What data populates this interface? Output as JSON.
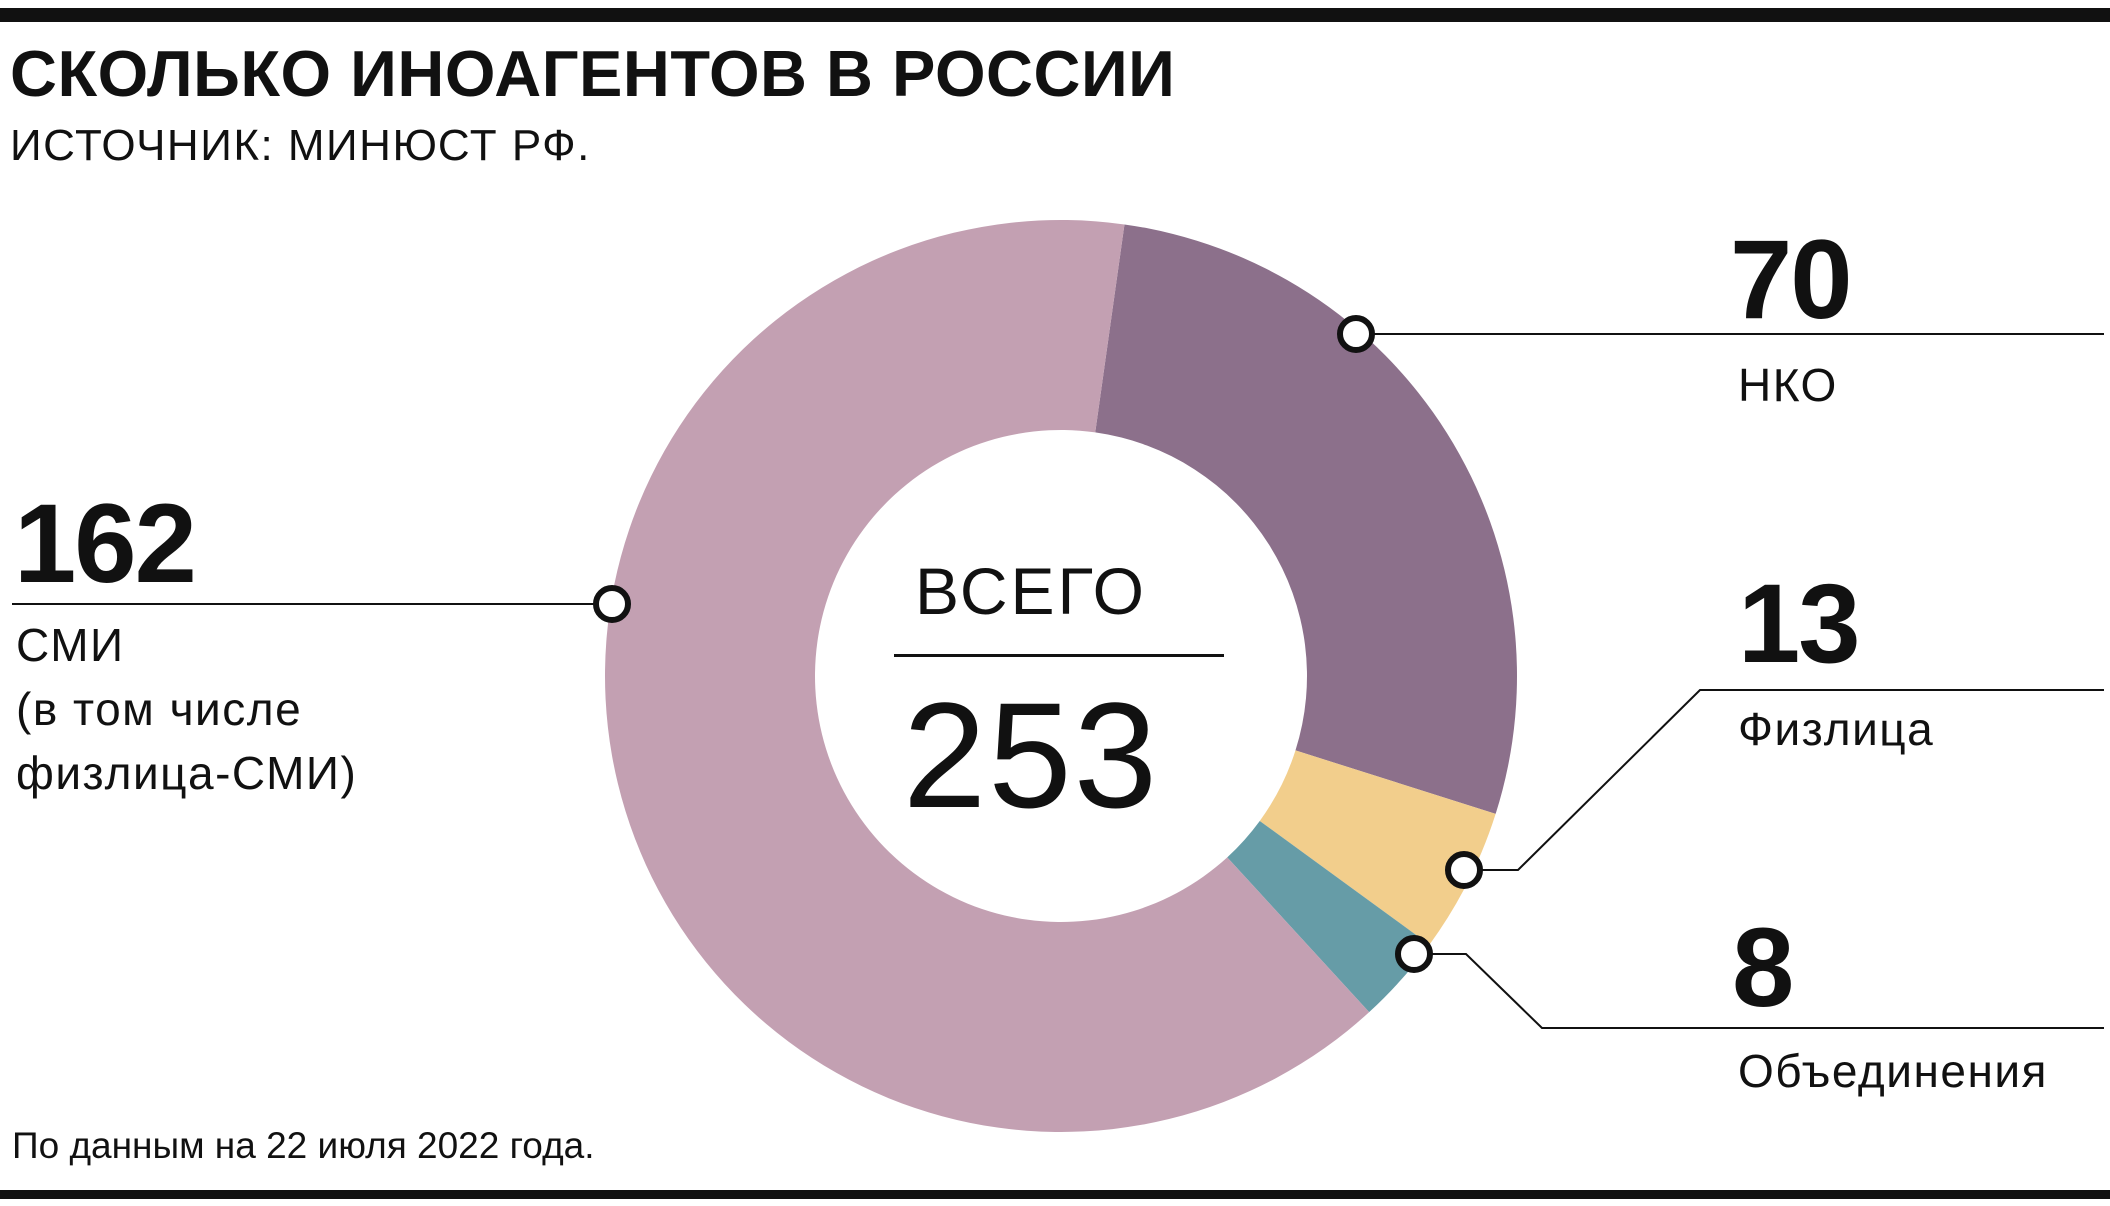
{
  "header": {
    "title": "СКОЛЬКО ИНОАГЕНТОВ В РОССИИ",
    "subtitle": "ИСТОЧНИК: МИНЮСТ РФ."
  },
  "center": {
    "label": "ВСЕГО",
    "total": "253"
  },
  "footnote": "По данным на 22 июля 2022 года.",
  "labels": {
    "smi": {
      "value": "162",
      "line1": "СМИ",
      "line2": "(в том числе",
      "line3": "физлица-СМИ)"
    },
    "nko": {
      "value": "70",
      "name": "НКО"
    },
    "fizlica": {
      "value": "13",
      "name": "Физлица"
    },
    "obedineniya": {
      "value": "8",
      "name": "Объединения"
    }
  },
  "chart_data": {
    "type": "pie",
    "variant": "donut",
    "total": 253,
    "title": "СКОЛЬКО ИНОАГЕНТОВ В РОССИИ",
    "start_angle_deg": 8,
    "direction": "clockwise",
    "slices": [
      {
        "key": "nko",
        "label": "НКО",
        "value": 70,
        "color": "#8c708b"
      },
      {
        "key": "fizlica",
        "label": "Физлица",
        "value": 13,
        "color": "#f2ce8c"
      },
      {
        "key": "obedineniya",
        "label": "Объединения",
        "value": 8,
        "color": "#669ca7"
      },
      {
        "key": "smi",
        "label": "СМИ",
        "value": 162,
        "color": "#c3a0b2"
      }
    ]
  }
}
